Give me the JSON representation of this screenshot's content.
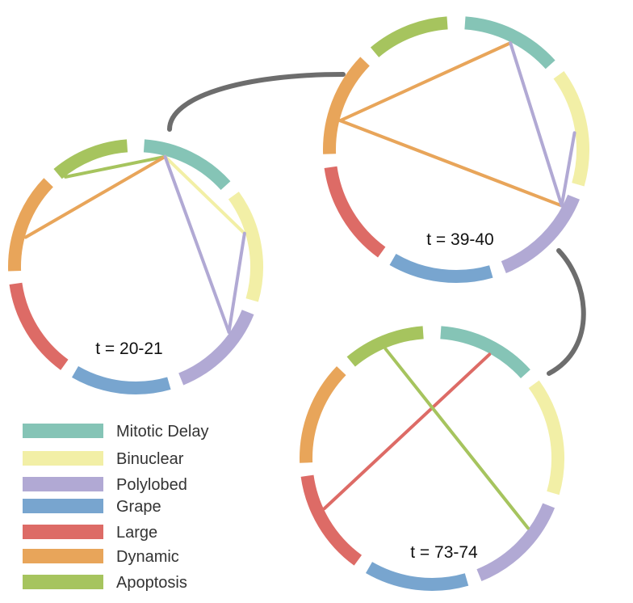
{
  "categories": [
    {
      "id": "mitotic-delay",
      "label": "Mitotic Delay",
      "color": "#85c4b6"
    },
    {
      "id": "binuclear",
      "label": "Binuclear",
      "color": "#f2efa6"
    },
    {
      "id": "polylobed",
      "label": "Polylobed",
      "color": "#b1a9d4"
    },
    {
      "id": "grape",
      "label": "Grape",
      "color": "#78a5cf"
    },
    {
      "id": "large",
      "label": "Large",
      "color": "#dd6b66"
    },
    {
      "id": "dynamic",
      "label": "Dynamic",
      "color": "#e8a55a"
    },
    {
      "id": "apoptosis",
      "label": "Apoptosis",
      "color": "#a6c45e"
    }
  ],
  "circles": [
    {
      "id": "t20",
      "time_label": "t = 20-21",
      "links": [
        {
          "from": "mitotic-delay",
          "to": "apoptosis"
        },
        {
          "from": "mitotic-delay",
          "to": "dynamic"
        },
        {
          "from": "mitotic-delay",
          "to": "binuclear"
        },
        {
          "from": "mitotic-delay",
          "to": "polylobed"
        },
        {
          "from": "binuclear",
          "to": "polylobed"
        }
      ]
    },
    {
      "id": "t39",
      "time_label": "t = 39-40",
      "links": [
        {
          "from": "mitotic-delay",
          "to": "dynamic"
        },
        {
          "from": "dynamic",
          "to": "polylobed"
        },
        {
          "from": "mitotic-delay",
          "to": "polylobed"
        },
        {
          "from": "binuclear",
          "to": "polylobed"
        }
      ]
    },
    {
      "id": "t73",
      "time_label": "t = 73-74",
      "links": [
        {
          "from": "mitotic-delay",
          "to": "large"
        },
        {
          "from": "apoptosis",
          "to": "polylobed"
        }
      ]
    }
  ],
  "connector_color": "#6d6d6d"
}
